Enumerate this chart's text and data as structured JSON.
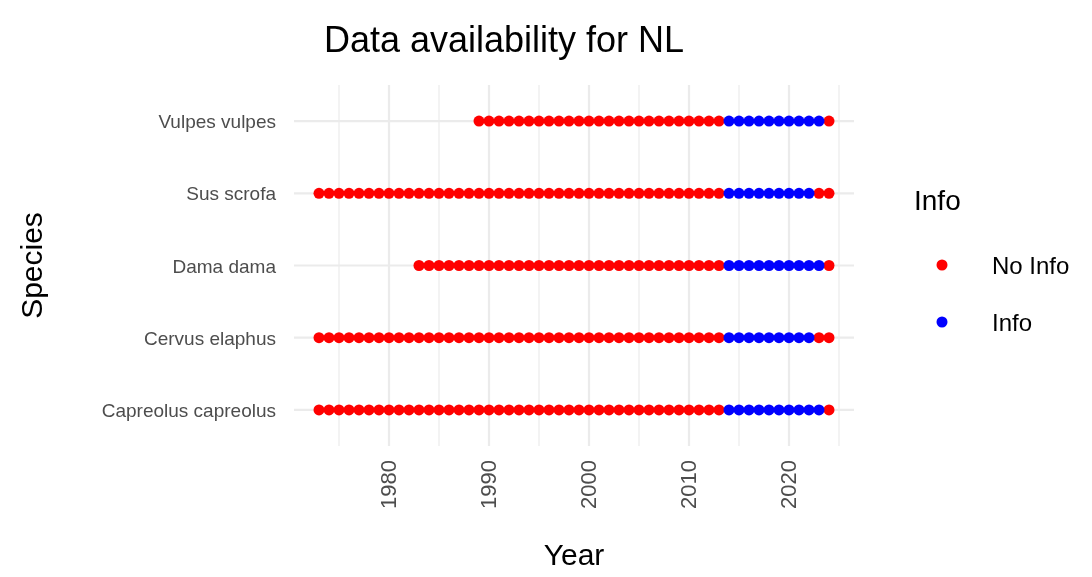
{
  "chart_data": {
    "type": "scatter",
    "title": "Data availability for NL",
    "xlabel": "Year",
    "ylabel": "Species",
    "legend_title": "Info",
    "orientation": "horizontal",
    "categories": [
      "Vulpes vulpes",
      "Sus scrofa",
      "Dama dama",
      "Cervus elaphus",
      "Capreolus capreolus"
    ],
    "xlim": [
      1970.5,
      2026.5
    ],
    "xticks": [
      {
        "value": 1975,
        "label": null
      },
      1980,
      {
        "value": 1985,
        "label": null
      },
      1990,
      {
        "value": 1995,
        "label": null
      },
      2000,
      {
        "value": 2005,
        "label": null
      },
      2010,
      {
        "value": 2015,
        "label": null
      },
      2020,
      {
        "value": 2025,
        "label": null
      }
    ],
    "grid": true,
    "legend": "right",
    "marker": "circle",
    "series": [
      {
        "name": "No Info",
        "color": "#ff0000",
        "values": [
          1989,
          1990,
          1991,
          1992,
          1993,
          1994,
          1995,
          1996,
          1997,
          1998,
          1999,
          2000,
          2001,
          2002,
          2003,
          2004,
          2005,
          2006,
          2007,
          2008,
          2009,
          2010,
          2011,
          2012,
          2013,
          2024,
          1973,
          1974,
          1975,
          1976,
          1977,
          1978,
          1979,
          1980,
          1981,
          1982,
          1983,
          1984,
          1985,
          1986,
          1987,
          1988,
          1989,
          1990,
          1991,
          1992,
          1993,
          1994,
          1995,
          1996,
          1997,
          1998,
          1999,
          2000,
          2001,
          2002,
          2003,
          2004,
          2005,
          2006,
          2007,
          2008,
          2009,
          2010,
          2011,
          2012,
          2013,
          2023,
          2024,
          1983,
          1984,
          1985,
          1986,
          1987,
          1988,
          1989,
          1990,
          1991,
          1992,
          1993,
          1994,
          1995,
          1996,
          1997,
          1998,
          1999,
          2000,
          2001,
          2002,
          2003,
          2004,
          2005,
          2006,
          2007,
          2008,
          2009,
          2010,
          2011,
          2012,
          2013,
          2024,
          1973,
          1974,
          1975,
          1976,
          1977,
          1978,
          1979,
          1980,
          1981,
          1982,
          1983,
          1984,
          1985,
          1986,
          1987,
          1988,
          1989,
          1990,
          1991,
          1992,
          1993,
          1994,
          1995,
          1996,
          1997,
          1998,
          1999,
          2000,
          2001,
          2002,
          2003,
          2004,
          2005,
          2006,
          2007,
          2008,
          2009,
          2010,
          2011,
          2012,
          2013,
          2023,
          2024,
          1973,
          1974,
          1975,
          1976,
          1977,
          1978,
          1979,
          1980,
          1981,
          1982,
          1983,
          1984,
          1985,
          1986,
          1987,
          1988,
          1989,
          1990,
          1991,
          1992,
          1993,
          1994,
          1995,
          1996,
          1997,
          1998,
          1999,
          2000,
          2001,
          2002,
          2003,
          2004,
          2005,
          2006,
          2007,
          2008,
          2009,
          2010,
          2011,
          2012,
          2013,
          2024
        ],
        "x": [
          "Vulpes vulpes",
          "Vulpes vulpes",
          "Vulpes vulpes",
          "Vulpes vulpes",
          "Vulpes vulpes",
          "Vulpes vulpes",
          "Vulpes vulpes",
          "Vulpes vulpes",
          "Vulpes vulpes",
          "Vulpes vulpes",
          "Vulpes vulpes",
          "Vulpes vulpes",
          "Vulpes vulpes",
          "Vulpes vulpes",
          "Vulpes vulpes",
          "Vulpes vulpes",
          "Vulpes vulpes",
          "Vulpes vulpes",
          "Vulpes vulpes",
          "Vulpes vulpes",
          "Vulpes vulpes",
          "Vulpes vulpes",
          "Vulpes vulpes",
          "Vulpes vulpes",
          "Vulpes vulpes",
          "Vulpes vulpes",
          "Sus scrofa",
          "Sus scrofa",
          "Sus scrofa",
          "Sus scrofa",
          "Sus scrofa",
          "Sus scrofa",
          "Sus scrofa",
          "Sus scrofa",
          "Sus scrofa",
          "Sus scrofa",
          "Sus scrofa",
          "Sus scrofa",
          "Sus scrofa",
          "Sus scrofa",
          "Sus scrofa",
          "Sus scrofa",
          "Sus scrofa",
          "Sus scrofa",
          "Sus scrofa",
          "Sus scrofa",
          "Sus scrofa",
          "Sus scrofa",
          "Sus scrofa",
          "Sus scrofa",
          "Sus scrofa",
          "Sus scrofa",
          "Sus scrofa",
          "Sus scrofa",
          "Sus scrofa",
          "Sus scrofa",
          "Sus scrofa",
          "Sus scrofa",
          "Sus scrofa",
          "Sus scrofa",
          "Sus scrofa",
          "Sus scrofa",
          "Sus scrofa",
          "Sus scrofa",
          "Sus scrofa",
          "Sus scrofa",
          "Sus scrofa",
          "Sus scrofa",
          "Sus scrofa",
          "Dama dama",
          "Dama dama",
          "Dama dama",
          "Dama dama",
          "Dama dama",
          "Dama dama",
          "Dama dama",
          "Dama dama",
          "Dama dama",
          "Dama dama",
          "Dama dama",
          "Dama dama",
          "Dama dama",
          "Dama dama",
          "Dama dama",
          "Dama dama",
          "Dama dama",
          "Dama dama",
          "Dama dama",
          "Dama dama",
          "Dama dama",
          "Dama dama",
          "Dama dama",
          "Dama dama",
          "Dama dama",
          "Dama dama",
          "Dama dama",
          "Dama dama",
          "Dama dama",
          "Dama dama",
          "Dama dama",
          "Dama dama",
          "Cervus elaphus",
          "Cervus elaphus",
          "Cervus elaphus",
          "Cervus elaphus",
          "Cervus elaphus",
          "Cervus elaphus",
          "Cervus elaphus",
          "Cervus elaphus",
          "Cervus elaphus",
          "Cervus elaphus",
          "Cervus elaphus",
          "Cervus elaphus",
          "Cervus elaphus",
          "Cervus elaphus",
          "Cervus elaphus",
          "Cervus elaphus",
          "Cervus elaphus",
          "Cervus elaphus",
          "Cervus elaphus",
          "Cervus elaphus",
          "Cervus elaphus",
          "Cervus elaphus",
          "Cervus elaphus",
          "Cervus elaphus",
          "Cervus elaphus",
          "Cervus elaphus",
          "Cervus elaphus",
          "Cervus elaphus",
          "Cervus elaphus",
          "Cervus elaphus",
          "Cervus elaphus",
          "Cervus elaphus",
          "Cervus elaphus",
          "Cervus elaphus",
          "Cervus elaphus",
          "Cervus elaphus",
          "Cervus elaphus",
          "Cervus elaphus",
          "Cervus elaphus",
          "Cervus elaphus",
          "Cervus elaphus",
          "Cervus elaphus",
          "Cervus elaphus",
          "Capreolus capreolus",
          "Capreolus capreolus",
          "Capreolus capreolus",
          "Capreolus capreolus",
          "Capreolus capreolus",
          "Capreolus capreolus",
          "Capreolus capreolus",
          "Capreolus capreolus",
          "Capreolus capreolus",
          "Capreolus capreolus",
          "Capreolus capreolus",
          "Capreolus capreolus",
          "Capreolus capreolus",
          "Capreolus capreolus",
          "Capreolus capreolus",
          "Capreolus capreolus",
          "Capreolus capreolus",
          "Capreolus capreolus",
          "Capreolus capreolus",
          "Capreolus capreolus",
          "Capreolus capreolus",
          "Capreolus capreolus",
          "Capreolus capreolus",
          "Capreolus capreolus",
          "Capreolus capreolus",
          "Capreolus capreolus",
          "Capreolus capreolus",
          "Capreolus capreolus",
          "Capreolus capreolus",
          "Capreolus capreolus",
          "Capreolus capreolus",
          "Capreolus capreolus",
          "Capreolus capreolus",
          "Capreolus capreolus",
          "Capreolus capreolus",
          "Capreolus capreolus",
          "Capreolus capreolus",
          "Capreolus capreolus",
          "Capreolus capreolus",
          "Capreolus capreolus",
          "Capreolus capreolus",
          "Capreolus capreolus"
        ]
      },
      {
        "name": "Info",
        "color": "#0000ff",
        "values": [
          2014,
          2015,
          2016,
          2017,
          2018,
          2019,
          2020,
          2021,
          2022,
          2023,
          2014,
          2015,
          2016,
          2017,
          2018,
          2019,
          2020,
          2021,
          2022,
          2014,
          2015,
          2016,
          2017,
          2018,
          2019,
          2020,
          2021,
          2022,
          2023,
          2014,
          2015,
          2016,
          2017,
          2018,
          2019,
          2020,
          2021,
          2022,
          2014,
          2015,
          2016,
          2017,
          2018,
          2019,
          2020,
          2021,
          2022,
          2023
        ],
        "x": [
          "Vulpes vulpes",
          "Vulpes vulpes",
          "Vulpes vulpes",
          "Vulpes vulpes",
          "Vulpes vulpes",
          "Vulpes vulpes",
          "Vulpes vulpes",
          "Vulpes vulpes",
          "Vulpes vulpes",
          "Vulpes vulpes",
          "Sus scrofa",
          "Sus scrofa",
          "Sus scrofa",
          "Sus scrofa",
          "Sus scrofa",
          "Sus scrofa",
          "Sus scrofa",
          "Sus scrofa",
          "Sus scrofa",
          "Dama dama",
          "Dama dama",
          "Dama dama",
          "Dama dama",
          "Dama dama",
          "Dama dama",
          "Dama dama",
          "Dama dama",
          "Dama dama",
          "Dama dama",
          "Cervus elaphus",
          "Cervus elaphus",
          "Cervus elaphus",
          "Cervus elaphus",
          "Cervus elaphus",
          "Cervus elaphus",
          "Cervus elaphus",
          "Cervus elaphus",
          "Cervus elaphus",
          "Capreolus capreolus",
          "Capreolus capreolus",
          "Capreolus capreolus",
          "Capreolus capreolus",
          "Capreolus capreolus",
          "Capreolus capreolus",
          "Capreolus capreolus",
          "Capreolus capreolus",
          "Capreolus capreolus",
          "Capreolus capreolus"
        ]
      }
    ]
  }
}
